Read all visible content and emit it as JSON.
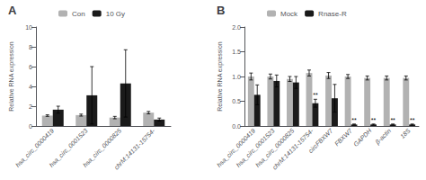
{
  "chart_data": [
    {
      "type": "bar",
      "title": "A",
      "categories": [
        "hsa_circ_0000419",
        "hsa_circ_0001523",
        "hsa_circ_0000825",
        "chrM:14131-15754-"
      ],
      "series": [
        {
          "name": "Con",
          "color": "#b2b2b2",
          "values": [
            1.05,
            1.1,
            0.85,
            1.35
          ],
          "errors": [
            0.08,
            0.1,
            0.12,
            0.12
          ]
        },
        {
          "name": "10 Gy",
          "color": "#1a1a1a",
          "values": [
            1.65,
            3.1,
            4.3,
            0.65
          ],
          "errors": [
            0.35,
            2.9,
            3.4,
            0.15
          ]
        }
      ],
      "ylabel": "Relative RNA expression",
      "ylim": [
        0,
        10
      ],
      "yticks": [
        0,
        2,
        4,
        6,
        8,
        10
      ],
      "legend": "upper left",
      "grid": false
    },
    {
      "type": "bar",
      "title": "B",
      "categories": [
        "hsa_circ_0000419",
        "hsa_circ_0001523",
        "hsa_circ_0000825",
        "chrM:14131-15754-",
        "circFBXW7",
        "FBXW7",
        "GAPDH",
        "β-actin",
        "18S"
      ],
      "series": [
        {
          "name": "Mock",
          "color": "#b2b2b2",
          "values": [
            1.0,
            1.0,
            0.95,
            1.07,
            1.02,
            1.0,
            0.97,
            0.97,
            0.97
          ],
          "errors": [
            0.07,
            0.05,
            0.05,
            0.06,
            0.06,
            0.04,
            0.04,
            0.04,
            0.04
          ]
        },
        {
          "name": "Rnase-R",
          "color": "#1a1a1a",
          "values": [
            0.63,
            0.91,
            0.88,
            0.46,
            0.56,
            0.03,
            0.03,
            0.03,
            0.03
          ],
          "errors": [
            0.2,
            0.12,
            0.12,
            0.08,
            0.28,
            0.01,
            0.01,
            0.01,
            0.01
          ]
        }
      ],
      "ylabel": "Relative RNA expression",
      "ylim": [
        0,
        2.0
      ],
      "yticks": [
        {
          "value": 0,
          "label": "0.0"
        },
        0.5,
        {
          "value": 1.0,
          "label": "1.0"
        },
        1.5,
        {
          "value": 2.0,
          "label": "2.0"
        }
      ],
      "annotations": [
        {
          "text": "**",
          "category": "chrM:14131-15754-",
          "series": "Rnase-R"
        },
        {
          "text": "**",
          "category": "FBXW7",
          "series": "Rnase-R"
        },
        {
          "text": "**",
          "category": "GAPDH",
          "series": "Rnase-R"
        },
        {
          "text": "**",
          "category": "β-actin",
          "series": "Rnase-R"
        },
        {
          "text": "**",
          "category": "18S",
          "series": "Rnase-R"
        }
      ],
      "legend": "upper left",
      "grid": false
    }
  ]
}
